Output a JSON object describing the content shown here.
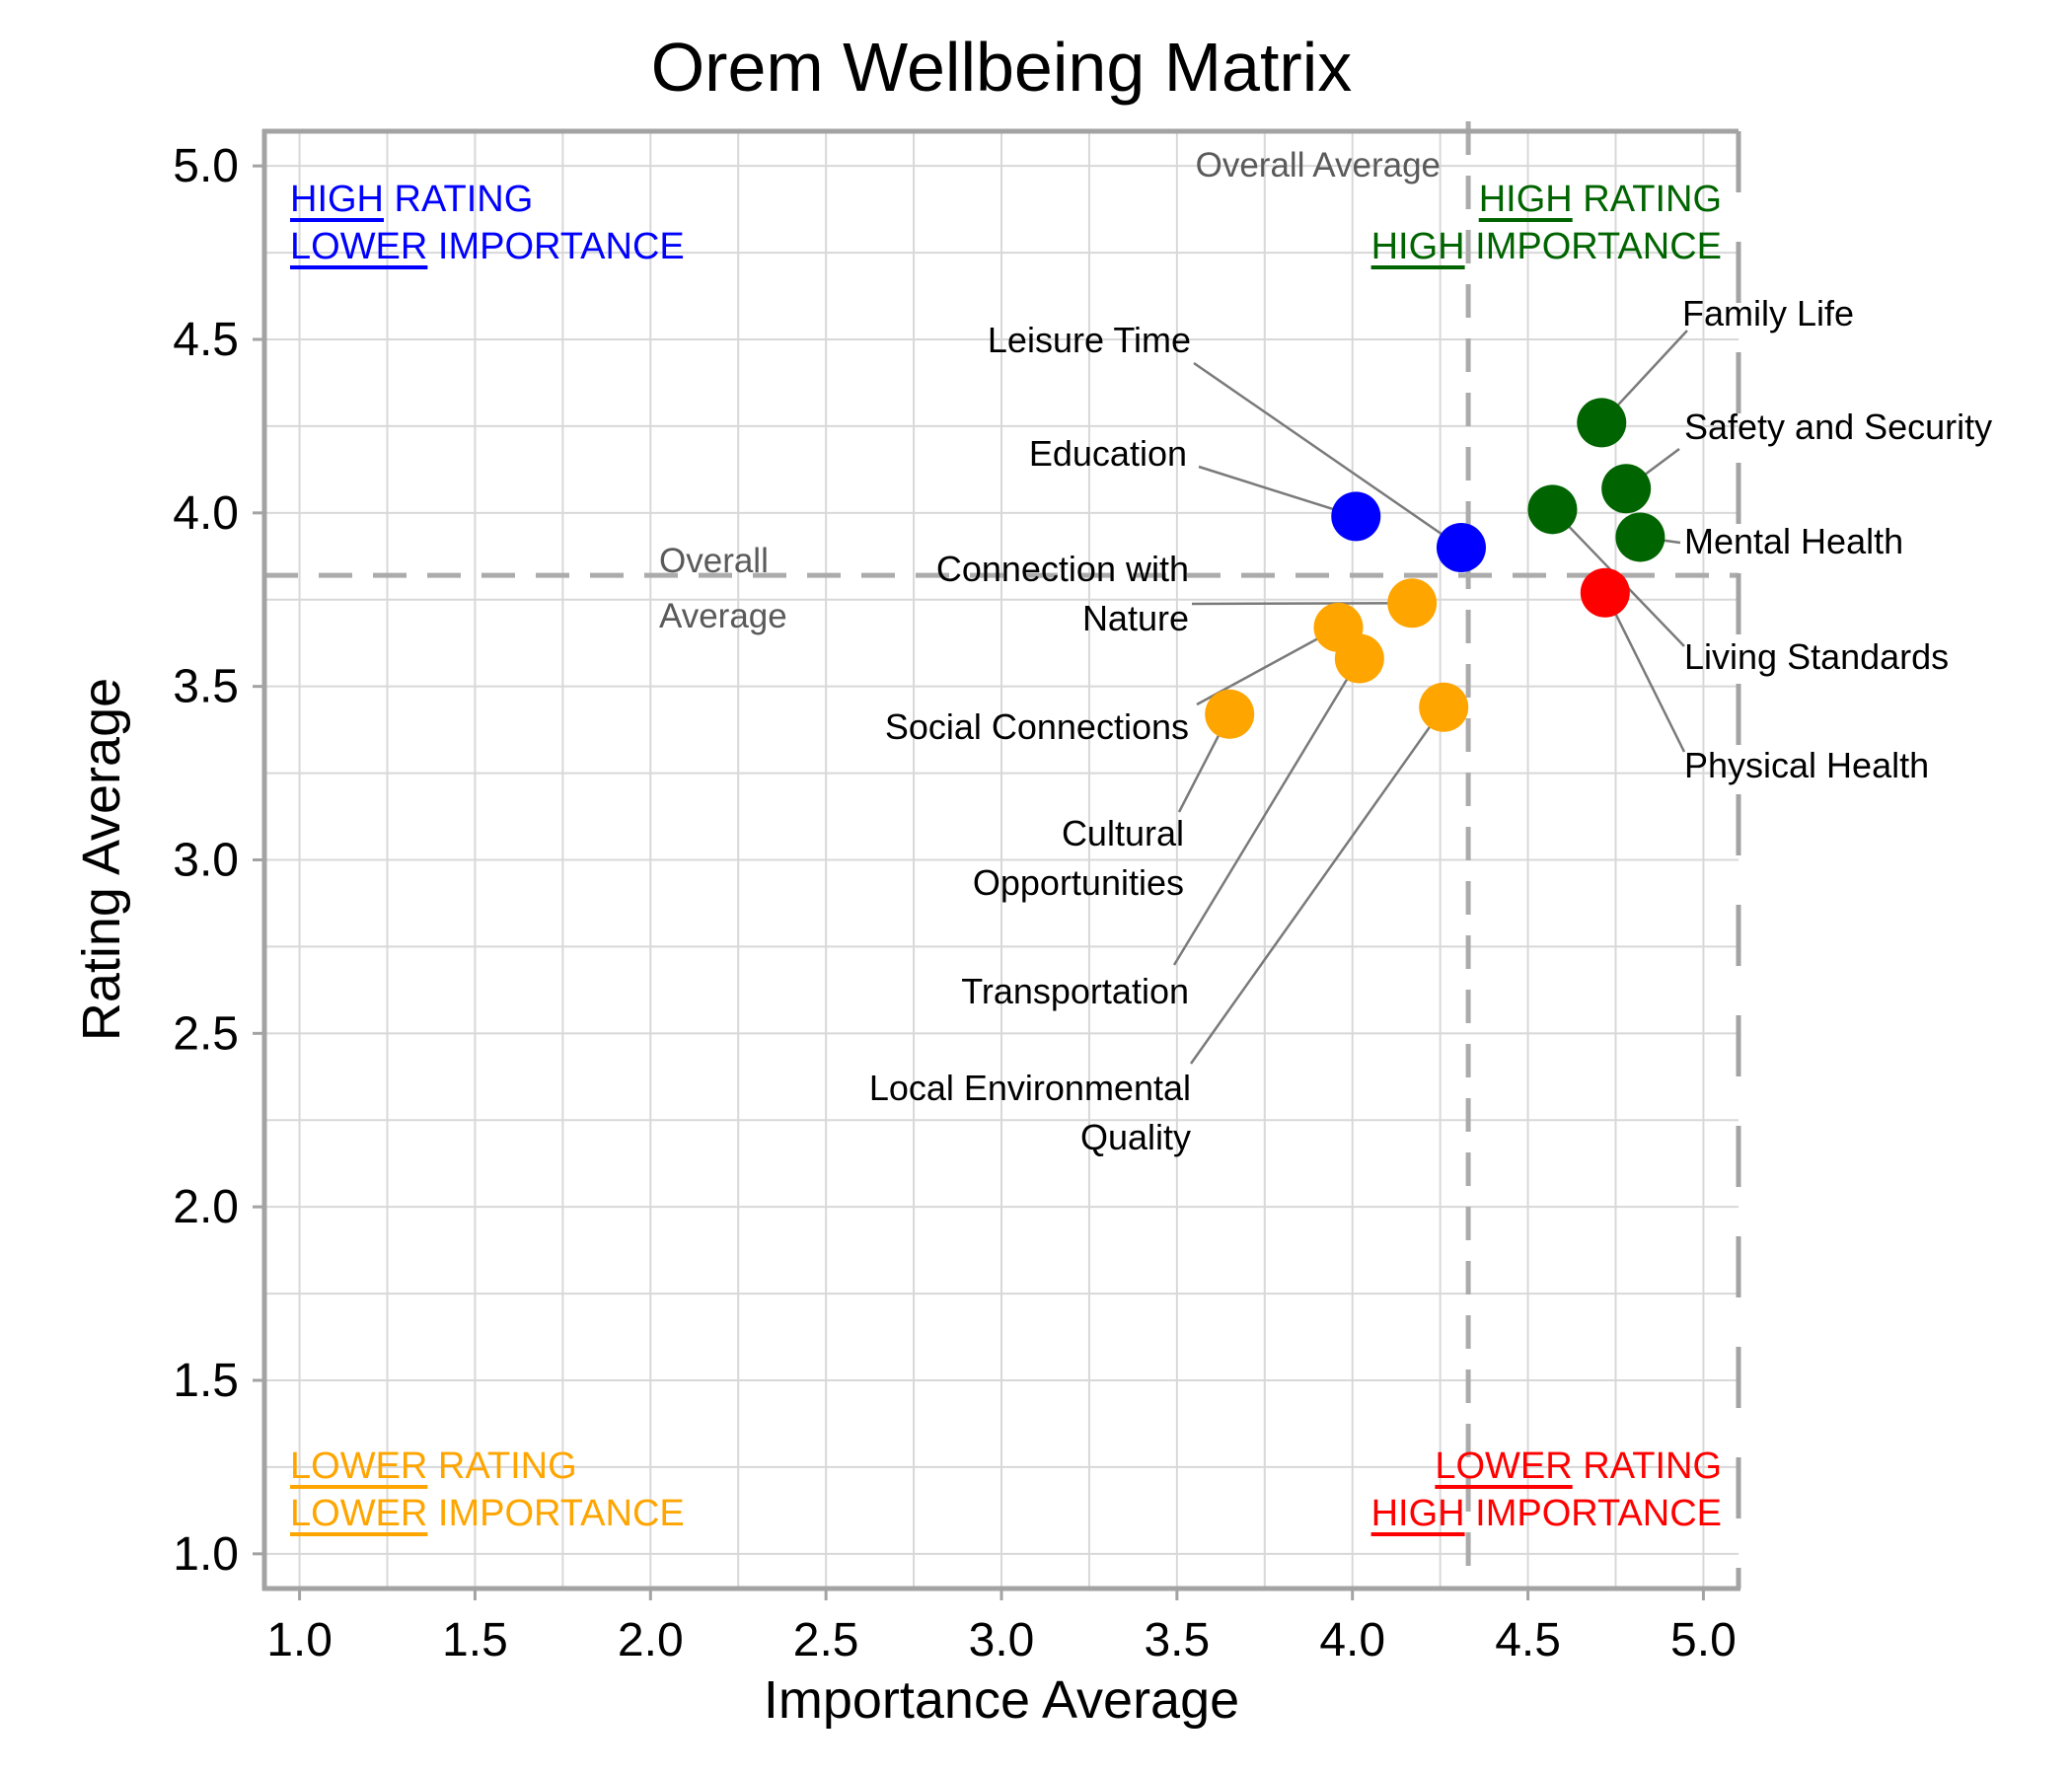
{
  "title": "Orem Wellbeing Matrix",
  "axes": {
    "xlabel": "Importance Average",
    "ylabel": "Rating Average",
    "xlim": [
      0.9,
      5.1
    ],
    "ylim": [
      0.9,
      5.1
    ],
    "xticks": [
      1.0,
      1.5,
      2.0,
      2.5,
      3.0,
      3.5,
      4.0,
      4.5,
      5.0
    ],
    "yticks": [
      1.0,
      1.5,
      2.0,
      2.5,
      3.0,
      3.5,
      4.0,
      4.5,
      5.0
    ],
    "grid_step": 0.25,
    "grid_on": true,
    "grid_color": "#d8d8d8",
    "spine_color": "#a3a3a3"
  },
  "avg_lines": {
    "x": 4.33,
    "y": 3.82,
    "top_label": "Overall Average",
    "left_label_line1": "Overall",
    "left_label_line2": "Average",
    "color": "#ababab"
  },
  "quadrants": [
    {
      "pos": "top-left",
      "color": "#0000ff",
      "lines": [
        [
          {
            "u": "HIGH"
          },
          {
            "t": " RATING"
          }
        ],
        [
          {
            "u": "LOWER"
          },
          {
            "t": " IMPORTANCE"
          }
        ]
      ]
    },
    {
      "pos": "top-right",
      "color": "#006400",
      "lines": [
        [
          {
            "u": "HIGH"
          },
          {
            "t": " RATING"
          }
        ],
        [
          {
            "u": "HIGH"
          },
          {
            "t": " IMPORTANCE"
          }
        ]
      ]
    },
    {
      "pos": "bottom-left",
      "color": "#ffa500",
      "lines": [
        [
          {
            "u": "LOWER"
          },
          {
            "t": " RATING"
          }
        ],
        [
          {
            "u": "LOWER"
          },
          {
            "t": " IMPORTANCE"
          }
        ]
      ]
    },
    {
      "pos": "bottom-right",
      "color": "#ff0000",
      "lines": [
        [
          {
            "u": "LOWER"
          },
          {
            "t": " RATING"
          }
        ],
        [
          {
            "u": "HIGH"
          },
          {
            "t": " IMPORTANCE"
          }
        ]
      ]
    }
  ],
  "chart_data": {
    "type": "scatter",
    "title": "Orem Wellbeing Matrix",
    "xlabel": "Importance Average",
    "ylabel": "Rating Average",
    "xlim": [
      0.9,
      5.1
    ],
    "ylim": [
      0.9,
      5.1
    ],
    "marker_radius_px": 25,
    "leader_color": "#7a7a7a",
    "series": [
      {
        "name": "High Rating / High Importance",
        "color": "#006400",
        "points": [
          {
            "label": "Family Life",
            "x": 4.71,
            "y": 4.26,
            "label_lines": [
              "Family Life"
            ],
            "side": "right",
            "ax": 1442,
            "ay": 202,
            "tx": 1437,
            "ty": 185
          },
          {
            "label": "Safety and Security",
            "x": 4.78,
            "y": 4.07,
            "label_lines": [
              "Safety and Security"
            ],
            "side": "right",
            "ax": 1434,
            "ay": 322,
            "tx": 1439,
            "ty": 300
          },
          {
            "label": "Mental Health",
            "x": 4.82,
            "y": 3.93,
            "label_lines": [
              "Mental Health"
            ],
            "side": "right",
            "ax": 1435,
            "ay": 417,
            "tx": 1439,
            "ty": 416
          },
          {
            "label": "Living Standards",
            "x": 4.57,
            "y": 4.01,
            "label_lines": [
              "Living Standards"
            ],
            "side": "right",
            "ax": 1439,
            "ay": 522,
            "tx": 1439,
            "ty": 533
          }
        ]
      },
      {
        "name": "High Rating / Lower Importance",
        "color": "#0000ff",
        "points": [
          {
            "label": "Education",
            "x": 4.01,
            "y": 3.99,
            "label_lines": [
              "Education"
            ],
            "side": "left",
            "ax": 947,
            "ay": 340,
            "tx": 935,
            "ty": 327
          },
          {
            "label": "Leisure Time",
            "x": 4.31,
            "y": 3.9,
            "label_lines": [
              "Leisure Time"
            ],
            "side": "left",
            "ax": 942,
            "ay": 235,
            "tx": 939,
            "ty": 212
          }
        ]
      },
      {
        "name": "Lower Rating / Lower Importance",
        "color": "#ffa500",
        "points": [
          {
            "label": "Connection with Nature",
            "x": 4.17,
            "y": 3.74,
            "label_lines": [
              "Connection with",
              "Nature"
            ],
            "side": "left",
            "ax": 940,
            "ay": 479,
            "tx": 937,
            "ty": 444
          },
          {
            "label": "Social Connections",
            "x": 3.96,
            "y": 3.67,
            "label_lines": [
              "Social Connections"
            ],
            "side": "left",
            "ax": 945,
            "ay": 581,
            "tx": 937,
            "ty": 604
          },
          {
            "label": "Cultural Opportunities",
            "x": 3.65,
            "y": 3.42,
            "label_lines": [
              "Cultural",
              "Opportunities"
            ],
            "side": "left",
            "ax": 927,
            "ay": 690,
            "tx": 932,
            "ty": 712
          },
          {
            "label": "Transportation",
            "x": 4.02,
            "y": 3.58,
            "label_lines": [
              "Transportation"
            ],
            "side": "left",
            "ax": 922,
            "ay": 845,
            "tx": 937,
            "ty": 872
          },
          {
            "label": "Local Environmental Quality",
            "x": 4.26,
            "y": 3.44,
            "label_lines": [
              "Local Environmental",
              "Quality"
            ],
            "side": "left",
            "ax": 939,
            "ay": 945,
            "tx": 939,
            "ty": 970
          }
        ]
      },
      {
        "name": "Lower Rating / High Importance",
        "color": "#ff0000",
        "points": [
          {
            "label": "Physical Health",
            "x": 4.72,
            "y": 3.77,
            "label_lines": [
              "Physical Health"
            ],
            "side": "right",
            "ax": 1439,
            "ay": 629,
            "tx": 1439,
            "ty": 643
          }
        ]
      }
    ]
  }
}
